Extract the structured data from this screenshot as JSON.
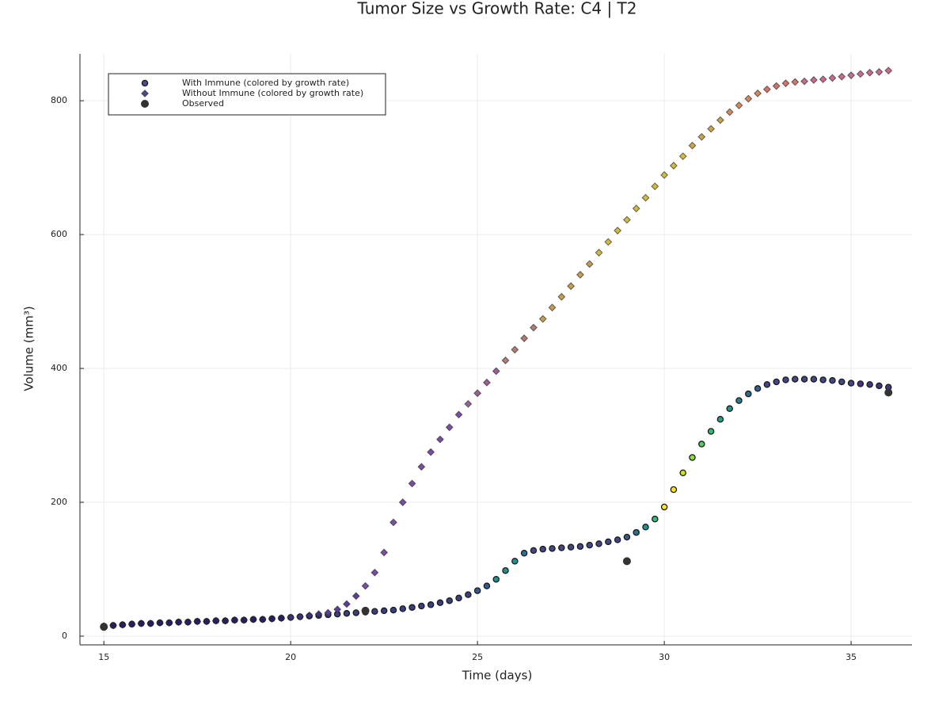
{
  "chart_data": {
    "type": "scatter",
    "title": "Tumor Size vs Growth Rate: C4 | T2",
    "x_label": "Time (days)",
    "y_label": "Volume (mm³)",
    "xlim": [
      14.36,
      36.63
    ],
    "ylim": [
      -13,
      870
    ],
    "xticks": [
      15,
      20,
      25,
      30,
      35
    ],
    "yticks": [
      0,
      200,
      400,
      600,
      800
    ],
    "grid": true,
    "legend": "top-left",
    "series": [
      {
        "name": "With Immune (colored by growth rate)",
        "marker": "circle",
        "color": "#4b4a8c",
        "x": [
          15,
          15.25,
          15.5,
          15.75,
          16,
          16.25,
          16.5,
          16.75,
          17,
          17.25,
          17.5,
          17.75,
          18,
          18.25,
          18.5,
          18.75,
          19,
          19.25,
          19.5,
          19.75,
          20,
          20.25,
          20.5,
          20.75,
          21,
          21.25,
          21.5,
          21.75,
          22,
          22.25,
          22.5,
          22.75,
          23,
          23.25,
          23.5,
          23.75,
          24,
          24.25,
          24.5,
          24.75,
          25,
          25.25,
          25.5,
          25.75,
          26,
          26.25,
          26.5,
          26.75,
          27,
          27.25,
          27.5,
          27.75,
          28,
          28.25,
          28.5,
          28.75,
          29,
          29.25,
          29.5,
          29.75,
          30,
          30.25,
          30.5,
          30.75,
          31,
          31.25,
          31.5,
          31.75,
          32,
          32.25,
          32.5,
          32.75,
          33,
          33.25,
          33.5,
          33.75,
          34,
          34.25,
          34.5,
          34.75,
          35,
          35.25,
          35.5,
          35.75,
          36
        ],
        "values": [
          15,
          16,
          17,
          18,
          19,
          19,
          20,
          20,
          21,
          21,
          22,
          22,
          23,
          23,
          24,
          24,
          25,
          25,
          26,
          27,
          28,
          29,
          30,
          31,
          32,
          33,
          34,
          35,
          36,
          37,
          38,
          39,
          41,
          43,
          45,
          47,
          50,
          53,
          57,
          62,
          68,
          75,
          85,
          98,
          112,
          124,
          128,
          130,
          131,
          132,
          133,
          134,
          136,
          138,
          141,
          144,
          148,
          155,
          163,
          175,
          193,
          219,
          244,
          267,
          287,
          306,
          324,
          340,
          352,
          362,
          370,
          376,
          380,
          383,
          384,
          384,
          384,
          383,
          382,
          380,
          378,
          377,
          376,
          374,
          372
        ],
        "colors": [
          "#241a5e",
          "#241a5e",
          "#241a5e",
          "#241a5e",
          "#241a5e",
          "#241a5e",
          "#241a5e",
          "#241a5e",
          "#241a5e",
          "#241a5e",
          "#241a5e",
          "#241a5e",
          "#241a5e",
          "#241a5e",
          "#241a5e",
          "#241a5e",
          "#241a5e",
          "#241a5e",
          "#241a5e",
          "#241a5e",
          "#3a3f80",
          "#3a3f80",
          "#3a3f80",
          "#3a3f80",
          "#3a3f80",
          "#3a3f80",
          "#3a3f80",
          "#3a3f80",
          "#3a3f80",
          "#3a3f80",
          "#3a3f80",
          "#3a3f80",
          "#3a3f80",
          "#3a3f80",
          "#3a3f80",
          "#3a3f80",
          "#3a3f80",
          "#3a3f80",
          "#3a3f80",
          "#3a3f80",
          "#375c8c",
          "#375c8c",
          "#22908c",
          "#22908c",
          "#22908c",
          "#2d718e",
          "#424786",
          "#424786",
          "#424786",
          "#424786",
          "#424786",
          "#424786",
          "#424786",
          "#424786",
          "#424786",
          "#424786",
          "#38598c",
          "#2c728e",
          "#21918c",
          "#3cbb75",
          "#fde725",
          "#fde725",
          "#cde11d",
          "#95d840",
          "#5ec962",
          "#35b779",
          "#20a486",
          "#21918c",
          "#287d8e",
          "#2f6b8e",
          "#355e8d",
          "#424786",
          "#424786",
          "#424786",
          "#424786",
          "#424786",
          "#424786",
          "#424786",
          "#424786",
          "#424786",
          "#424786",
          "#463480",
          "#463480",
          "#463480",
          "#463480"
        ]
      },
      {
        "name": "Without Immune (colored by growth rate)",
        "marker": "diamond",
        "color": "#4b4a8c",
        "x": [
          15,
          15.25,
          15.5,
          15.75,
          16,
          16.25,
          16.5,
          16.75,
          17,
          17.25,
          17.5,
          17.75,
          18,
          18.25,
          18.5,
          18.75,
          19,
          19.25,
          19.5,
          19.75,
          20,
          20.25,
          20.5,
          20.75,
          21,
          21.25,
          21.5,
          21.75,
          22,
          22.25,
          22.5,
          22.75,
          23,
          23.25,
          23.5,
          23.75,
          24,
          24.25,
          24.5,
          24.75,
          25,
          25.25,
          25.5,
          25.75,
          26,
          26.25,
          26.5,
          26.75,
          27,
          27.25,
          27.5,
          27.75,
          28,
          28.25,
          28.5,
          28.75,
          29,
          29.25,
          29.5,
          29.75,
          30,
          30.25,
          30.5,
          30.75,
          31,
          31.25,
          31.5,
          31.75,
          32,
          32.25,
          32.5,
          32.75,
          33,
          33.25,
          33.5,
          33.75,
          34,
          34.25,
          34.5,
          34.75,
          35,
          35.25,
          35.5,
          35.75,
          36
        ],
        "values": [
          15,
          16,
          17,
          18,
          19,
          19,
          20,
          20,
          21,
          21,
          22,
          22,
          23,
          23,
          24,
          24,
          25,
          25,
          26,
          27,
          28,
          29,
          31,
          33,
          35,
          40,
          48,
          60,
          75,
          95,
          125,
          170,
          200,
          228,
          253,
          275,
          294,
          312,
          331,
          347,
          363,
          379,
          396,
          412,
          428,
          445,
          461,
          474,
          491,
          507,
          523,
          540,
          556,
          573,
          589,
          606,
          622,
          639,
          655,
          672,
          689,
          703,
          717,
          733,
          746,
          758,
          771,
          783,
          793,
          803,
          811,
          817,
          822,
          826,
          828,
          829,
          831,
          832,
          834,
          836,
          838,
          840,
          842,
          843,
          845
        ],
        "colors": [
          "#2a1c68",
          "#2a1c68",
          "#2a1c68",
          "#2a1c68",
          "#2a1c68",
          "#2a1c68",
          "#2a1c68",
          "#2a1c68",
          "#2a1c68",
          "#2a1c68",
          "#2a1c68",
          "#2a1c68",
          "#2a1c68",
          "#2a1c68",
          "#2a1c68",
          "#2a1c68",
          "#2a1c68",
          "#2a1c68",
          "#2a1c68",
          "#2a1c68",
          "#3e2f80",
          "#3e2f80",
          "#3e2f80",
          "#3e2f80",
          "#5b3f96",
          "#5b3f96",
          "#5b3f96",
          "#5b3f96",
          "#7a4fa3",
          "#7a4fa3",
          "#7a4fa3",
          "#7a4fa3",
          "#7a4fa3",
          "#7a4fa3",
          "#7a4fa3",
          "#7a4fa3",
          "#7a4fa3",
          "#7a4fa3",
          "#7a4fa3",
          "#9b5f9a",
          "#9b5f9a",
          "#9b5f9a",
          "#9b5f9a",
          "#b27c73",
          "#b27c73",
          "#b27c73",
          "#b27c73",
          "#c4a04e",
          "#c4a04e",
          "#c4a04e",
          "#c4a04e",
          "#c4a04e",
          "#c4a04e",
          "#cfbb3e",
          "#cfbb3e",
          "#cfbb3e",
          "#cfbb3e",
          "#cfbb3e",
          "#cfbb3e",
          "#cfbb3e",
          "#cfbb3e",
          "#cfbb3e",
          "#cfbb3e",
          "#c9a547",
          "#c9a547",
          "#c9a547",
          "#c9a547",
          "#d58a5c",
          "#d58a5c",
          "#d58a5c",
          "#d58a5c",
          "#d27468",
          "#d27468",
          "#d27468",
          "#d27468",
          "#c96a92",
          "#c96a92",
          "#c96a92",
          "#c96a92",
          "#c96a92",
          "#c96a92",
          "#c96a92",
          "#c96a92",
          "#c96a92",
          "#c96a92"
        ]
      },
      {
        "name": "Observed",
        "marker": "dot",
        "color": "#333333",
        "x": [
          15,
          22,
          29,
          36
        ],
        "values": [
          14,
          38,
          112,
          364
        ]
      }
    ]
  }
}
